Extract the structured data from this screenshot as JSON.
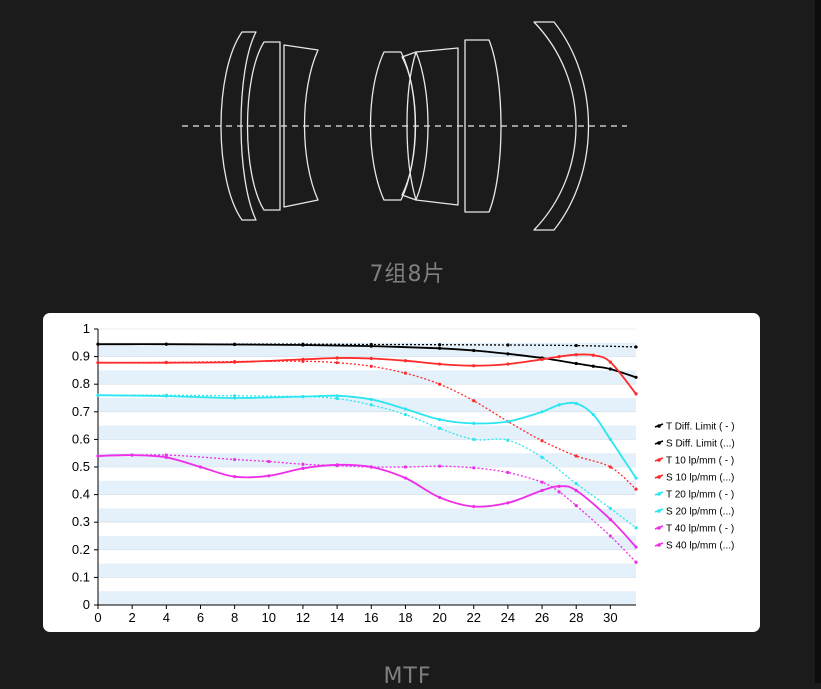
{
  "lens_caption": "7组8片",
  "mtf_caption": "MTF",
  "chart_data": {
    "type": "line",
    "xlim": [
      0,
      31.5
    ],
    "ylim": [
      0,
      1
    ],
    "x_ticks": [
      0,
      2,
      4,
      6,
      8,
      10,
      12,
      14,
      16,
      18,
      20,
      22,
      24,
      26,
      28,
      30
    ],
    "y_ticks": [
      "0",
      "0.1",
      "0.2",
      "0.3",
      "0.4",
      "0.5",
      "0.6",
      "0.7",
      "0.8",
      "0.9",
      "1"
    ],
    "legend_position": "right",
    "banded_background": true,
    "series": [
      {
        "name": "T Diff. Limit ( - )",
        "color": "#000000",
        "dash": false,
        "x": [
          0,
          4,
          8,
          12,
          16,
          20,
          22,
          24,
          26,
          28,
          29,
          30,
          31.5
        ],
        "y": [
          0.945,
          0.945,
          0.944,
          0.942,
          0.938,
          0.93,
          0.922,
          0.91,
          0.895,
          0.875,
          0.865,
          0.855,
          0.825
        ]
      },
      {
        "name": "S Diff. Limit (...)",
        "color": "#000000",
        "dash": true,
        "x": [
          0,
          4,
          8,
          12,
          16,
          20,
          24,
          28,
          31.5
        ],
        "y": [
          0.945,
          0.945,
          0.945,
          0.945,
          0.944,
          0.943,
          0.942,
          0.94,
          0.935
        ]
      },
      {
        "name": "T 10 lp/mm ( - )",
        "color": "#ff2b2b",
        "dash": false,
        "x": [
          0,
          4,
          8,
          12,
          14,
          16,
          18,
          20,
          22,
          24,
          26,
          27,
          28,
          29,
          30,
          31.5
        ],
        "y": [
          0.878,
          0.878,
          0.88,
          0.89,
          0.895,
          0.893,
          0.885,
          0.873,
          0.867,
          0.873,
          0.89,
          0.9,
          0.907,
          0.905,
          0.88,
          0.765
        ]
      },
      {
        "name": "S 10 lp/mm (...)",
        "color": "#ff2b2b",
        "dash": true,
        "x": [
          0,
          4,
          8,
          12,
          14,
          16,
          18,
          20,
          22,
          24,
          26,
          28,
          30,
          31.5
        ],
        "y": [
          0.878,
          0.879,
          0.882,
          0.883,
          0.878,
          0.865,
          0.84,
          0.8,
          0.74,
          0.665,
          0.595,
          0.54,
          0.5,
          0.42
        ]
      },
      {
        "name": "T 20 lp/mm ( - )",
        "color": "#2ae6f0",
        "dash": false,
        "x": [
          0,
          4,
          8,
          12,
          14,
          16,
          18,
          20,
          22,
          24,
          26,
          27,
          28,
          29,
          30,
          31.5
        ],
        "y": [
          0.76,
          0.757,
          0.75,
          0.755,
          0.758,
          0.745,
          0.71,
          0.672,
          0.658,
          0.665,
          0.7,
          0.725,
          0.73,
          0.69,
          0.6,
          0.46
        ]
      },
      {
        "name": "S 20 lp/mm (...)",
        "color": "#2ae6f0",
        "dash": true,
        "x": [
          0,
          4,
          8,
          12,
          14,
          16,
          18,
          20,
          22,
          24,
          26,
          28,
          30,
          31.5
        ],
        "y": [
          0.76,
          0.76,
          0.758,
          0.755,
          0.748,
          0.725,
          0.69,
          0.64,
          0.6,
          0.597,
          0.535,
          0.44,
          0.35,
          0.28
        ]
      },
      {
        "name": "T 40 lp/mm ( - )",
        "color": "#ee2ee8",
        "dash": false,
        "x": [
          0,
          2,
          4,
          6,
          8,
          10,
          12,
          14,
          16,
          18,
          20,
          22,
          24,
          26,
          27,
          28,
          30,
          31.5
        ],
        "y": [
          0.54,
          0.543,
          0.535,
          0.5,
          0.465,
          0.468,
          0.495,
          0.508,
          0.5,
          0.46,
          0.39,
          0.357,
          0.37,
          0.415,
          0.43,
          0.415,
          0.31,
          0.21
        ]
      },
      {
        "name": "S 40 lp/mm (...)",
        "color": "#ee2ee8",
        "dash": true,
        "x": [
          0,
          4,
          8,
          10,
          12,
          14,
          16,
          18,
          20,
          22,
          24,
          26,
          27,
          28,
          30,
          31.5
        ],
        "y": [
          0.54,
          0.543,
          0.527,
          0.52,
          0.51,
          0.505,
          0.5,
          0.5,
          0.503,
          0.497,
          0.48,
          0.445,
          0.41,
          0.36,
          0.25,
          0.155
        ]
      }
    ]
  }
}
